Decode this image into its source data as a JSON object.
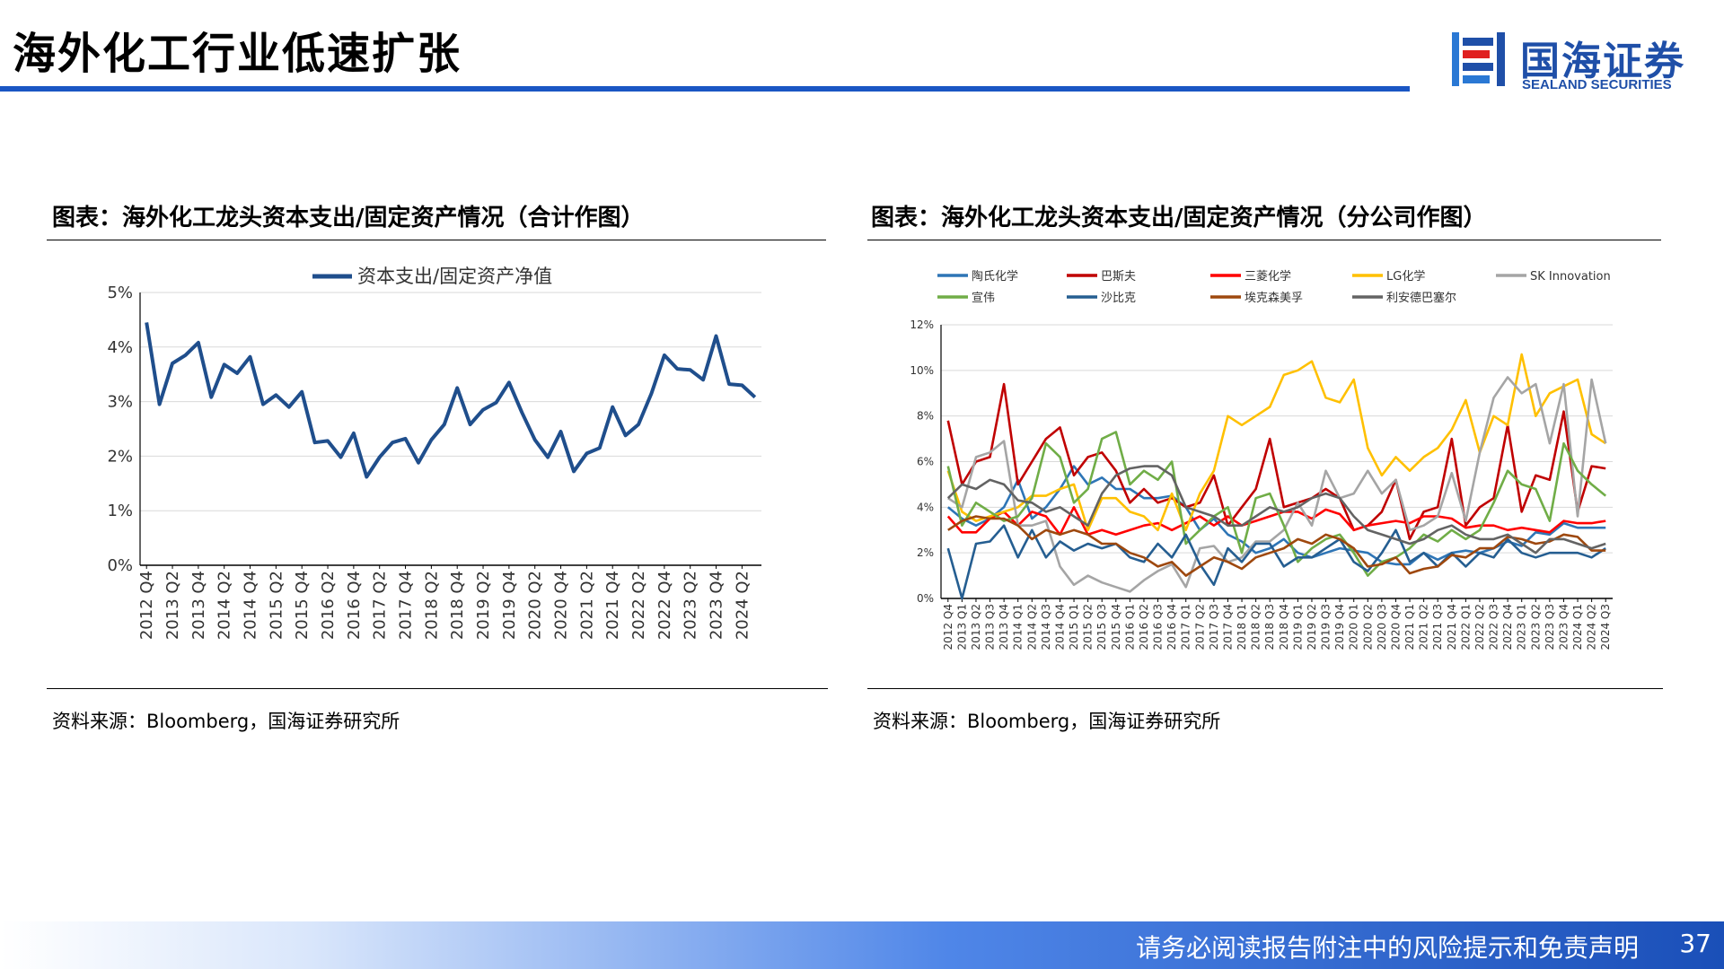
{
  "page": {
    "title": "海外化工行业低速扩张",
    "logo_cn": "国海证券",
    "logo_en": "SEALAND SECURITIES",
    "footer": "请务必阅读报告附注中的风险提示和免责声明",
    "page_number": "37",
    "colors": {
      "brand": "#1a56c4",
      "footer_dark": "#1a4fb8"
    }
  },
  "left_panel": {
    "title": "图表：海外化工龙头资本支出/固定资产情况（合计作图）",
    "source": "资料来源：Bloomberg，国海证券研究所"
  },
  "right_panel": {
    "title": "图表：海外化工龙头资本支出/固定资产情况（分公司作图）",
    "source": "资料来源：Bloomberg，国海证券研究所"
  },
  "chart_data": [
    {
      "type": "line",
      "legend": "资本支出/固定资产净值",
      "legend_position": "top-center",
      "grid": true,
      "ylim": [
        0,
        5
      ],
      "y_ticks": [
        "0%",
        "1%",
        "2%",
        "3%",
        "4%",
        "5%"
      ],
      "x_tick_labels": [
        "2012 Q4",
        "2013 Q2",
        "2013 Q4",
        "2014 Q2",
        "2014 Q4",
        "2015 Q2",
        "2015 Q4",
        "2016 Q2",
        "2016 Q4",
        "2017 Q2",
        "2017 Q4",
        "2018 Q2",
        "2018 Q4",
        "2019 Q2",
        "2019 Q4",
        "2020 Q2",
        "2020 Q4",
        "2021 Q2",
        "2021 Q4",
        "2022 Q2",
        "2022 Q4",
        "2023 Q2",
        "2023 Q4",
        "2024 Q2"
      ],
      "series": [
        {
          "name": "资本支出/固定资产净值",
          "color": "#1f4e8c",
          "values": [
            4.45,
            2.95,
            3.7,
            3.85,
            4.08,
            3.08,
            3.68,
            3.52,
            3.82,
            2.95,
            3.12,
            2.9,
            3.18,
            2.25,
            2.28,
            1.98,
            2.42,
            1.62,
            1.98,
            2.25,
            2.32,
            1.88,
            2.3,
            2.58,
            3.25,
            2.58,
            2.85,
            2.98,
            3.35,
            2.8,
            2.3,
            1.98,
            2.45,
            1.72,
            2.05,
            2.15,
            2.9,
            2.38,
            2.58,
            3.15,
            3.85,
            3.6,
            3.58,
            3.4,
            4.2,
            3.32,
            3.3,
            3.08
          ]
        }
      ]
    },
    {
      "type": "line",
      "legend_position": "top",
      "grid": true,
      "ylim": [
        0,
        12
      ],
      "y_ticks": [
        "0%",
        "2%",
        "4%",
        "6%",
        "8%",
        "10%",
        "12%"
      ],
      "x_tick_labels": [
        "2012 Q4",
        "2013 Q1",
        "2013 Q2",
        "2013 Q3",
        "2013 Q4",
        "2014 Q1",
        "2014 Q2",
        "2014 Q3",
        "2014 Q4",
        "2015 Q1",
        "2015 Q2",
        "2015 Q3",
        "2015 Q4",
        "2016 Q1",
        "2016 Q2",
        "2016 Q3",
        "2016 Q4",
        "2017 Q1",
        "2017 Q2",
        "2017 Q3",
        "2017 Q4",
        "2018 Q1",
        "2018 Q2",
        "2018 Q3",
        "2018 Q4",
        "2019 Q1",
        "2019 Q2",
        "2019 Q3",
        "2019 Q4",
        "2020 Q1",
        "2020 Q2",
        "2020 Q3",
        "2020 Q4",
        "2021 Q1",
        "2021 Q2",
        "2021 Q3",
        "2021 Q4",
        "2022 Q1",
        "2022 Q2",
        "2022 Q3",
        "2022 Q4",
        "2023 Q1",
        "2023 Q2",
        "2023 Q3",
        "2023 Q4",
        "2024 Q1",
        "2024 Q2",
        "2024 Q3"
      ],
      "series": [
        {
          "name": "陶氏化学",
          "color": "#2e75b6",
          "values": [
            4.0,
            3.5,
            3.2,
            3.5,
            4.0,
            5.2,
            3.5,
            4.0,
            4.8,
            5.8,
            5.0,
            5.3,
            4.8,
            4.8,
            4.4,
            4.4,
            4.5,
            4.0,
            3.0,
            3.5,
            2.8,
            2.5,
            2.0,
            2.2,
            2.6,
            2.0,
            1.8,
            2.0,
            2.2,
            2.1,
            2.0,
            1.6,
            1.5,
            1.5,
            2.0,
            1.7,
            2.0,
            2.1,
            2.0,
            2.2,
            2.5,
            2.3,
            2.9,
            2.8,
            3.3,
            3.1,
            3.1,
            3.1
          ]
        },
        {
          "name": "巴斯夫",
          "color": "#c00000",
          "values": [
            7.8,
            5.0,
            6.0,
            6.2,
            9.4,
            5.0,
            6.0,
            7.0,
            7.5,
            5.4,
            6.2,
            6.4,
            5.6,
            4.2,
            4.8,
            4.2,
            4.4,
            4.0,
            4.2,
            5.4,
            3.2,
            4.0,
            4.8,
            7.0,
            4.0,
            4.2,
            4.4,
            4.8,
            4.4,
            3.0,
            3.2,
            3.8,
            5.2,
            2.6,
            3.8,
            4.0,
            7.0,
            3.2,
            4.0,
            4.4,
            7.6,
            3.8,
            5.4,
            5.2,
            8.2,
            3.8,
            5.8,
            5.7
          ]
        },
        {
          "name": "三菱化学",
          "color": "#ff0000",
          "values": [
            3.6,
            2.9,
            2.9,
            3.5,
            3.8,
            3.2,
            3.8,
            3.6,
            2.8,
            4.0,
            2.8,
            3.0,
            2.8,
            3.0,
            3.2,
            3.3,
            3.0,
            3.3,
            3.6,
            3.2,
            3.6,
            3.2,
            3.4,
            3.6,
            3.8,
            3.8,
            3.5,
            3.9,
            3.7,
            3.0,
            3.2,
            3.3,
            3.4,
            3.3,
            3.6,
            3.6,
            3.5,
            3.1,
            3.2,
            3.2,
            3.0,
            3.1,
            3.0,
            2.9,
            3.4,
            3.3,
            3.3,
            3.4
          ]
        },
        {
          "name": "LG化学",
          "color": "#ffc000",
          "values": [
            5.6,
            3.8,
            3.4,
            3.6,
            3.8,
            4.0,
            4.5,
            4.5,
            4.8,
            5.0,
            3.0,
            4.4,
            4.4,
            3.8,
            3.6,
            3.0,
            4.6,
            3.0,
            4.6,
            5.6,
            8.0,
            7.6,
            8.0,
            8.4,
            9.8,
            10.0,
            10.4,
            8.8,
            8.6,
            9.6,
            6.6,
            5.4,
            6.2,
            5.6,
            6.2,
            6.6,
            7.4,
            8.7,
            6.4,
            8.0,
            7.6,
            10.7,
            8.0,
            9.0,
            9.3,
            9.6,
            7.2,
            6.8
          ]
        },
        {
          "name": "SK Innovation",
          "color": "#a5a5a5",
          "values": [
            4.4,
            4.0,
            6.2,
            6.4,
            6.9,
            3.2,
            3.2,
            3.4,
            1.4,
            0.6,
            1.0,
            0.7,
            0.5,
            0.3,
            0.8,
            1.2,
            1.5,
            0.5,
            2.2,
            2.3,
            1.6,
            1.8,
            2.5,
            2.5,
            3.0,
            4.2,
            3.2,
            5.6,
            4.4,
            4.6,
            5.6,
            4.6,
            5.2,
            3.0,
            3.2,
            3.6,
            5.5,
            3.4,
            6.4,
            8.8,
            9.7,
            9.0,
            9.4,
            6.8,
            9.4,
            3.6,
            9.6,
            6.8
          ]
        },
        {
          "name": "宣伟",
          "color": "#70ad47",
          "values": [
            5.8,
            3.2,
            4.2,
            3.8,
            3.4,
            3.6,
            4.4,
            6.8,
            6.2,
            4.2,
            4.8,
            7.0,
            7.3,
            5.0,
            5.6,
            5.2,
            6.0,
            2.4,
            3.0,
            3.6,
            4.0,
            2.0,
            4.4,
            4.6,
            3.2,
            1.6,
            2.2,
            2.6,
            2.8,
            2.0,
            1.0,
            1.6,
            1.8,
            2.2,
            2.8,
            2.5,
            3.0,
            2.6,
            3.0,
            4.2,
            5.6,
            5.0,
            4.8,
            3.4,
            6.8,
            5.6,
            5.0,
            4.5
          ]
        },
        {
          "name": "沙比克",
          "color": "#255e91",
          "values": [
            2.2,
            0.0,
            2.4,
            2.5,
            3.2,
            1.8,
            3.0,
            1.8,
            2.5,
            2.1,
            2.4,
            2.2,
            2.4,
            1.8,
            1.6,
            2.4,
            1.8,
            2.8,
            1.5,
            0.6,
            2.2,
            1.6,
            2.4,
            2.4,
            1.4,
            1.8,
            1.8,
            2.2,
            2.6,
            1.6,
            1.2,
            2.0,
            3.0,
            1.6,
            2.0,
            1.4,
            2.0,
            1.4,
            2.0,
            1.8,
            2.6,
            2.0,
            1.8,
            2.0,
            2.0,
            2.0,
            1.8,
            2.2
          ]
        },
        {
          "name": "埃克森美孚",
          "color": "#9e480e",
          "values": [
            3.0,
            3.4,
            3.6,
            3.5,
            3.5,
            3.2,
            2.6,
            3.0,
            2.8,
            3.0,
            2.8,
            2.4,
            2.4,
            2.0,
            1.8,
            1.4,
            1.6,
            1.0,
            1.4,
            1.8,
            1.6,
            1.3,
            1.8,
            2.0,
            2.2,
            2.6,
            2.4,
            2.8,
            2.6,
            2.2,
            1.4,
            1.5,
            1.8,
            1.1,
            1.3,
            1.4,
            1.9,
            1.8,
            2.2,
            2.2,
            2.7,
            2.6,
            2.4,
            2.5,
            2.8,
            2.7,
            2.1,
            2.1
          ]
        },
        {
          "name": "利安德巴塞尔",
          "color": "#636363",
          "values": [
            4.4,
            5.0,
            4.8,
            5.2,
            5.0,
            4.3,
            4.2,
            3.8,
            4.0,
            3.6,
            3.2,
            4.6,
            5.4,
            5.7,
            5.8,
            5.8,
            5.4,
            4.0,
            3.8,
            3.6,
            3.2,
            3.2,
            3.6,
            4.0,
            3.8,
            4.0,
            4.4,
            4.6,
            4.4,
            3.6,
            3.0,
            2.8,
            2.6,
            2.4,
            2.6,
            3.0,
            3.2,
            2.8,
            2.6,
            2.6,
            2.8,
            2.4,
            2.0,
            2.6,
            2.6,
            2.4,
            2.2,
            2.4
          ]
        }
      ]
    }
  ]
}
